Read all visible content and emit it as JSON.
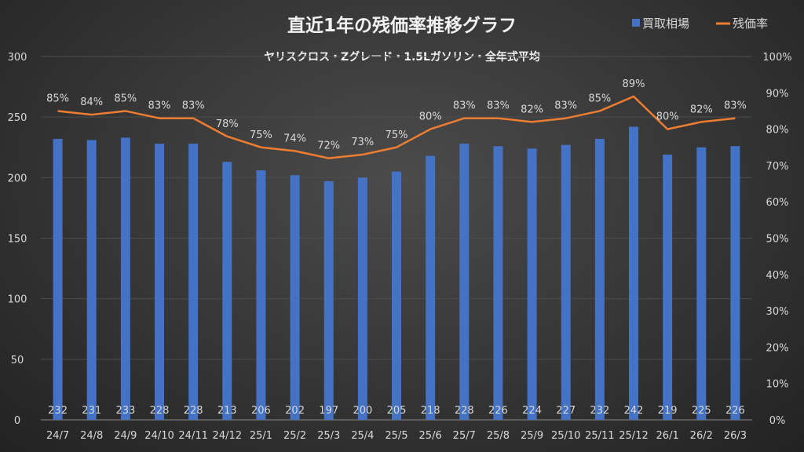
{
  "chart_data": {
    "type": "bar+line",
    "title": "直近1年の残価率推移グラフ",
    "subtitle": "ヤリスクロス・Zグレード・1.5Lガソリン・全年式平均",
    "categories": [
      "24/7",
      "24/8",
      "24/9",
      "24/10",
      "24/11",
      "24/12",
      "25/1",
      "25/2",
      "25/3",
      "25/4",
      "25/5",
      "25/6",
      "25/7",
      "25/8",
      "25/9",
      "25/10",
      "25/11",
      "25/12",
      "26/1",
      "26/2",
      "26/3"
    ],
    "series": [
      {
        "name": "買取相場",
        "type": "bar",
        "axis": "left",
        "color": "#4472c4",
        "values": [
          232,
          231,
          233,
          228,
          228,
          213,
          206,
          202,
          197,
          200,
          205,
          218,
          228,
          226,
          224,
          227,
          232,
          242,
          219,
          225,
          226
        ]
      },
      {
        "name": "残価率",
        "type": "line",
        "axis": "right",
        "color": "#ed7d31",
        "values": [
          85,
          84,
          85,
          83,
          83,
          78,
          75,
          74,
          72,
          73,
          75,
          80,
          83,
          83,
          82,
          83,
          85,
          89,
          80,
          82,
          83
        ]
      }
    ],
    "y_left": {
      "range": [
        0,
        300
      ],
      "ticks": [
        0,
        50,
        100,
        150,
        200,
        250,
        300
      ]
    },
    "y_right": {
      "range": [
        0,
        100
      ],
      "ticks": [
        "0%",
        "10%",
        "20%",
        "30%",
        "40%",
        "50%",
        "60%",
        "70%",
        "80%",
        "90%",
        "100%"
      ]
    },
    "grid": true,
    "legend": "top-right",
    "data_labels": true
  }
}
